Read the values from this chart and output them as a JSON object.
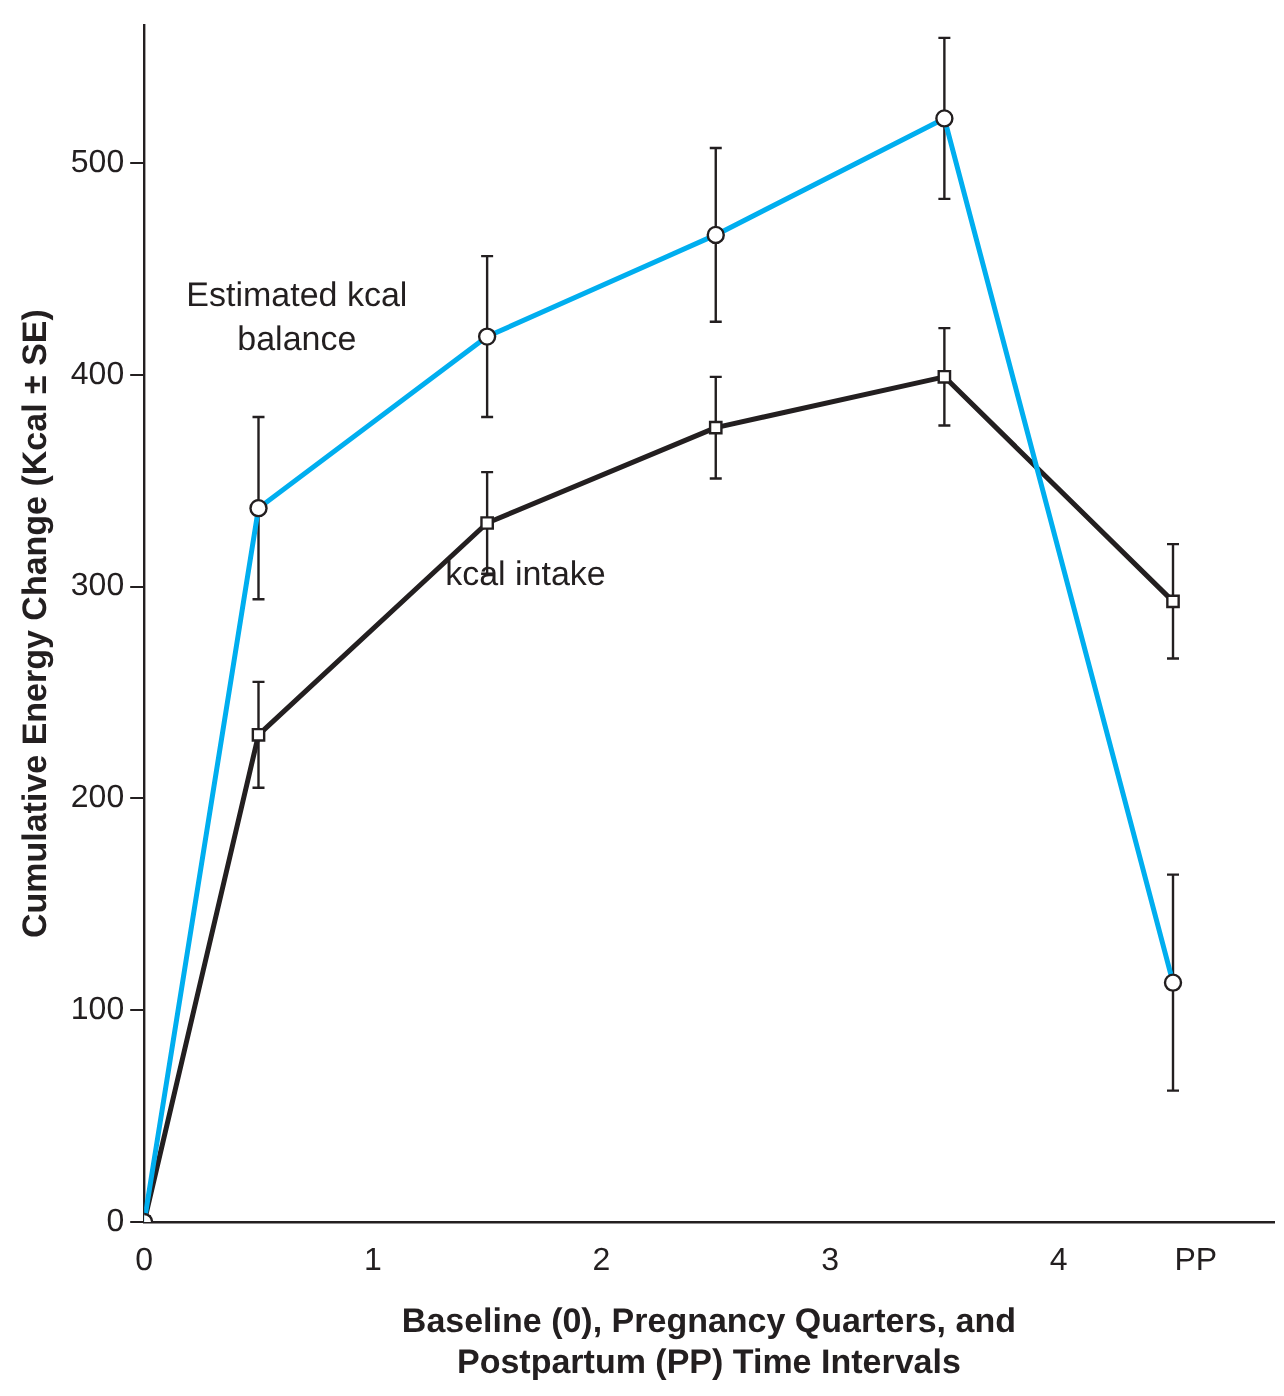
{
  "chart_data": {
    "type": "line",
    "xlabel": "Baseline (0), Pregnancy Quarters, and\nPostpartum (PP) Time Intervals",
    "ylabel": "Cumulative Energy Change (Kcal ± SE)",
    "x": [
      0,
      0.5,
      1.5,
      2.5,
      3.5,
      4.5
    ],
    "series": [
      {
        "name": "Estimated kcal balance",
        "color": "#00aeef",
        "marker": "circle",
        "values": [
          0,
          337,
          418,
          466,
          521,
          113
        ],
        "errors": [
          null,
          43,
          38,
          41,
          38,
          51
        ]
      },
      {
        "name": "kcal intake",
        "color": "#231f20",
        "marker": "square",
        "values": [
          0,
          230,
          330,
          375,
          399,
          293
        ],
        "errors": [
          null,
          25,
          24,
          24,
          23,
          27
        ]
      }
    ],
    "xlim": [
      0,
      4.94
    ],
    "xticks": [
      0,
      1,
      2,
      3,
      4,
      {
        "value": 4.6,
        "label": "PP"
      }
    ],
    "ylim": [
      0,
      565
    ],
    "yticks": [
      0,
      100,
      200,
      300,
      400,
      500
    ],
    "grid": false,
    "legend": false,
    "line_style": "solid"
  }
}
